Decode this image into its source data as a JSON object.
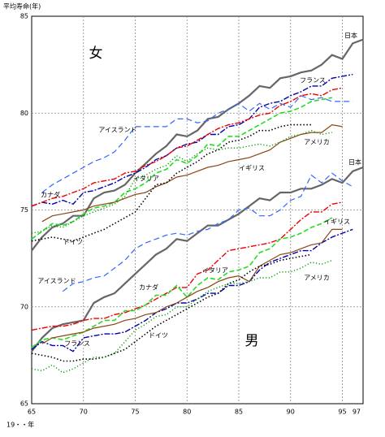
{
  "chart_data": {
    "type": "line",
    "title": "平均寿命(年)",
    "x_label": "19・・年",
    "annotations": [
      "女",
      "男"
    ],
    "x": [
      65,
      66,
      67,
      68,
      69,
      70,
      71,
      72,
      73,
      74,
      75,
      76,
      77,
      78,
      79,
      80,
      81,
      82,
      83,
      84,
      85,
      86,
      87,
      88,
      89,
      90,
      91,
      92,
      93,
      94,
      95,
      96,
      97
    ],
    "xlim": [
      65,
      97
    ],
    "xticks": [
      65,
      70,
      75,
      80,
      85,
      90,
      95,
      97
    ],
    "ylim": [
      65,
      85
    ],
    "yticks": [
      65,
      70,
      75,
      80,
      85
    ],
    "grid": true,
    "series": [
      {
        "name": "日本",
        "color": "#666666",
        "values": [
          72.9,
          73.6,
          74.1,
          74.3,
          74.7,
          74.7,
          75.6,
          75.9,
          76.0,
          76.3,
          76.9,
          77.4,
          77.9,
          78.3,
          78.9,
          78.8,
          79.1,
          79.7,
          79.8,
          80.2,
          80.5,
          80.9,
          81.4,
          81.3,
          81.8,
          81.9,
          82.1,
          82.2,
          82.5,
          83.0,
          82.8,
          83.6,
          83.8
        ]
      },
      {
        "name": "フランス",
        "color": "#0000aa",
        "values": [
          75.2,
          75.4,
          75.3,
          75.5,
          75.3,
          75.9,
          76.0,
          76.2,
          76.4,
          76.7,
          76.9,
          77.2,
          77.6,
          77.8,
          78.2,
          78.4,
          78.5,
          78.9,
          78.9,
          79.3,
          79.4,
          79.7,
          80.3,
          80.5,
          80.6,
          80.9,
          81.1,
          81.4,
          81.4,
          81.8,
          81.9,
          82.0,
          null
        ]
      },
      {
        "name": "アイスランド",
        "color": "#3366ff",
        "values": [
          null,
          75.9,
          76.3,
          76.6,
          76.9,
          77.2,
          77.5,
          77.7,
          78.0,
          78.6,
          79.3,
          79.3,
          79.3,
          79.3,
          79.7,
          79.7,
          79.5,
          79.6,
          80.0,
          80.2,
          80.5,
          80.1,
          80.5,
          80.2,
          80.5,
          80.3,
          80.9,
          80.7,
          80.8,
          80.6,
          80.6,
          80.6,
          null
        ]
      },
      {
        "name": "カナダ",
        "color": "#ee0000",
        "values": [
          75.2,
          75.4,
          75.6,
          75.7,
          75.9,
          76.1,
          76.4,
          76.5,
          76.6,
          76.9,
          77.0,
          77.3,
          77.5,
          77.8,
          78.2,
          78.3,
          78.6,
          78.9,
          79.2,
          79.4,
          79.5,
          79.7,
          79.9,
          80.0,
          80.4,
          80.6,
          80.9,
          81.0,
          80.9,
          81.2,
          81.3,
          null,
          null
        ]
      },
      {
        "name": "イタリア",
        "color": "#22dd22",
        "values": [
          73.5,
          73.9,
          74.3,
          74.2,
          74.4,
          74.8,
          75.1,
          75.2,
          75.4,
          75.9,
          76.1,
          76.4,
          76.9,
          77.1,
          77.6,
          77.4,
          77.8,
          78.4,
          78.3,
          78.8,
          78.8,
          79.1,
          79.4,
          79.7,
          80.0,
          80.1,
          80.3,
          80.6,
          80.7,
          80.8,
          null,
          null,
          null
        ]
      },
      {
        "name": "イギリス",
        "color": "#8b4513",
        "values": [
          null,
          74.4,
          74.7,
          74.8,
          74.9,
          75.0,
          75.2,
          75.3,
          75.4,
          75.6,
          75.8,
          75.9,
          76.2,
          76.4,
          76.7,
          76.8,
          77.0,
          77.2,
          77.3,
          77.5,
          77.6,
          77.7,
          77.9,
          78.1,
          78.5,
          78.7,
          78.9,
          79.0,
          79.0,
          79.4,
          79.3,
          null,
          null
        ]
      },
      {
        "name": "ドイツ",
        "color": "#000000",
        "values": [
          73.4,
          73.5,
          73.6,
          73.5,
          73.4,
          73.6,
          73.8,
          74.0,
          74.3,
          74.6,
          74.9,
          75.6,
          76.3,
          76.4,
          76.9,
          77.2,
          77.5,
          77.9,
          78.1,
          78.5,
          78.6,
          78.8,
          79.1,
          79.1,
          79.3,
          79.4,
          79.4,
          79.4,
          null,
          null,
          null,
          null,
          null
        ]
      },
      {
        "name": "アメリカ",
        "color": "#009900",
        "values": [
          73.8,
          73.9,
          74.2,
          74.1,
          74.4,
          74.7,
          74.9,
          75.1,
          75.3,
          75.7,
          76.6,
          76.8,
          77.1,
          77.3,
          77.8,
          77.5,
          77.9,
          78.2,
          78.1,
          78.2,
          78.2,
          78.3,
          78.4,
          78.3,
          78.5,
          78.8,
          78.9,
          79.1,
          78.9,
          79.0,
          null,
          null,
          null
        ]
      },
      {
        "name": "日本",
        "color": "#666666",
        "values": [
          67.7,
          68.4,
          68.9,
          69.1,
          69.2,
          69.3,
          70.2,
          70.5,
          70.7,
          71.2,
          71.7,
          72.2,
          72.7,
          73.0,
          73.5,
          73.4,
          73.8,
          74.2,
          74.2,
          74.5,
          74.8,
          75.2,
          75.6,
          75.5,
          75.9,
          75.9,
          76.1,
          76.1,
          76.3,
          76.6,
          76.4,
          77.0,
          77.2
        ]
      },
      {
        "name": "フランス",
        "color": "#0000aa",
        "values": [
          67.8,
          68.2,
          68.0,
          68.0,
          67.7,
          68.4,
          68.5,
          68.6,
          68.6,
          68.7,
          69.0,
          69.3,
          69.7,
          69.9,
          70.2,
          70.2,
          70.4,
          70.7,
          70.7,
          71.1,
          71.1,
          71.3,
          71.9,
          72.3,
          72.5,
          72.7,
          72.9,
          72.9,
          73.3,
          73.6,
          73.8,
          74.0,
          null
        ]
      },
      {
        "name": "アイスランド",
        "color": "#3366ff",
        "values": [
          null,
          null,
          null,
          70.8,
          71.2,
          71.3,
          71.5,
          71.6,
          72.0,
          72.4,
          73.0,
          73.3,
          73.5,
          73.7,
          73.8,
          73.7,
          73.9,
          74.0,
          74.3,
          74.5,
          75.0,
          75.1,
          74.7,
          74.7,
          75.0,
          75.5,
          75.7,
          76.8,
          76.4,
          76.9,
          76.5,
          76.2,
          null
        ]
      },
      {
        "name": "カナダ",
        "color": "#ee0000",
        "values": [
          68.8,
          68.9,
          69.0,
          69.0,
          69.1,
          69.3,
          69.4,
          69.4,
          69.6,
          69.7,
          69.9,
          70.1,
          70.4,
          70.7,
          71.0,
          71.0,
          71.7,
          71.9,
          72.4,
          72.9,
          73.0,
          73.1,
          73.2,
          73.3,
          73.5,
          74.0,
          74.5,
          74.9,
          74.9,
          75.3,
          75.4,
          null,
          null
        ]
      },
      {
        "name": "イタリア",
        "color": "#22dd22",
        "values": [
          67.9,
          68.3,
          68.4,
          68.3,
          68.5,
          68.7,
          69.0,
          69.3,
          69.3,
          69.8,
          69.8,
          70.1,
          70.6,
          70.6,
          71.1,
          70.5,
          71.1,
          71.5,
          71.4,
          71.8,
          71.9,
          72.1,
          72.8,
          73.0,
          73.5,
          73.6,
          73.8,
          74.1,
          74.3,
          74.6,
          null,
          null,
          null
        ]
      },
      {
        "name": "イギリス",
        "color": "#8b4513",
        "values": [
          null,
          68.1,
          68.4,
          68.5,
          68.6,
          68.7,
          68.9,
          69.0,
          69.1,
          69.3,
          69.4,
          69.6,
          69.7,
          70.0,
          70.2,
          70.5,
          70.8,
          71.0,
          71.3,
          71.5,
          71.6,
          71.3,
          72.1,
          72.4,
          72.7,
          72.8,
          73.0,
          73.2,
          73.3,
          74.0,
          74.0,
          null,
          null
        ]
      },
      {
        "name": "ドイツ",
        "color": "#000000",
        "values": [
          67.6,
          67.5,
          67.4,
          67.2,
          67.2,
          67.3,
          67.3,
          67.4,
          67.6,
          67.8,
          68.2,
          68.6,
          69.0,
          69.3,
          69.6,
          69.9,
          70.2,
          70.5,
          70.7,
          71.2,
          71.4,
          71.8,
          72.1,
          72.2,
          72.4,
          72.5,
          72.6,
          72.7,
          null,
          null,
          null,
          null,
          null
        ]
      },
      {
        "name": "アメリカ",
        "color": "#009900",
        "values": [
          66.8,
          66.7,
          67.0,
          66.6,
          66.8,
          67.1,
          67.4,
          67.4,
          67.6,
          68.2,
          68.8,
          69.1,
          69.5,
          69.6,
          70.0,
          70.0,
          70.4,
          70.8,
          71.0,
          71.2,
          71.2,
          71.3,
          71.5,
          71.5,
          71.8,
          71.8,
          72.0,
          72.3,
          72.2,
          72.4,
          null,
          null,
          null
        ]
      }
    ]
  }
}
